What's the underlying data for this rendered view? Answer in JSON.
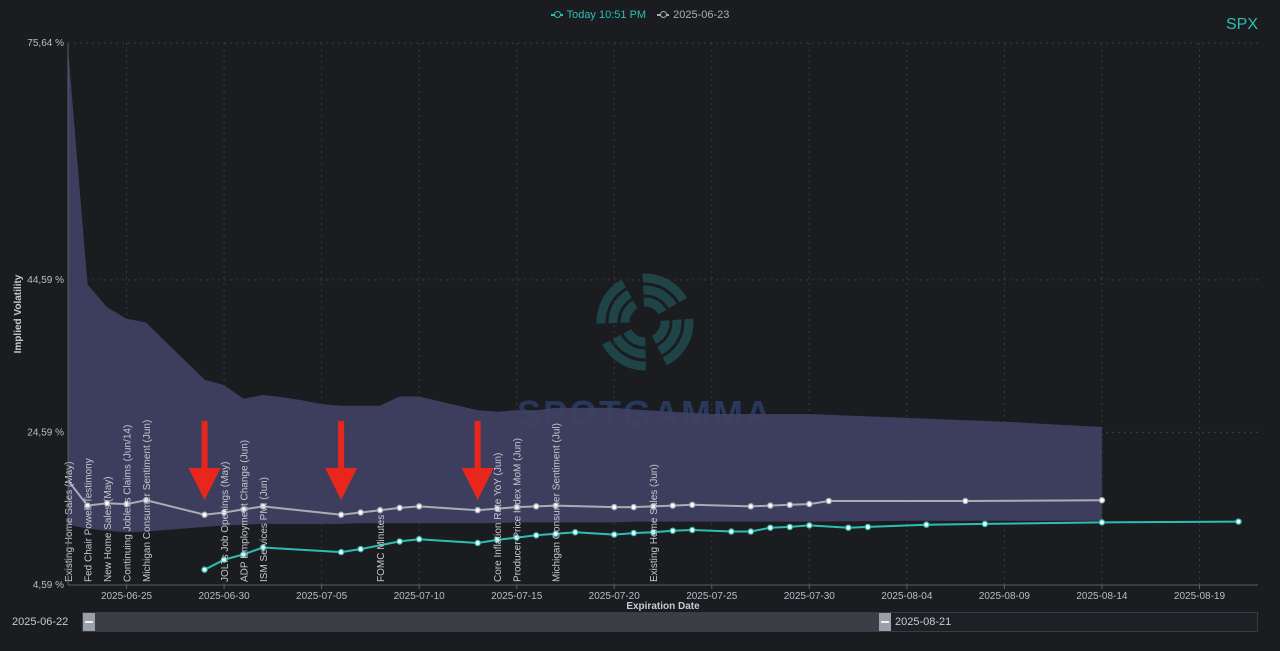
{
  "legend": {
    "today_label": "Today 10:51 PM",
    "prev_label": "2025-06-23"
  },
  "ticker": "SPX",
  "colors": {
    "today": "#2bbfb4",
    "prev": "#a9acb4",
    "band": "#3f4062",
    "arrow": "#e8261b"
  },
  "zoom": {
    "start_label": "2025-06-22",
    "end_label": "2025-08-21"
  },
  "chart_data": {
    "type": "line",
    "xlabel": "Expiration Date",
    "ylabel": "Implied Volatility",
    "x_range": [
      "2025-06-22",
      "2025-08-22"
    ],
    "ylim": [
      4.59,
      75.64
    ],
    "yticks": [
      {
        "v": 4.59,
        "label": "4,59 %"
      },
      {
        "v": 24.59,
        "label": "24,59 %"
      },
      {
        "v": 44.59,
        "label": "44,59 %"
      },
      {
        "v": 75.64,
        "label": "75,64 %"
      }
    ],
    "xticks": [
      "2025-06-25",
      "2025-06-30",
      "2025-07-05",
      "2025-07-10",
      "2025-07-15",
      "2025-07-20",
      "2025-07-25",
      "2025-07-30",
      "2025-08-04",
      "2025-08-09",
      "2025-08-14",
      "2025-08-19"
    ],
    "watermark": "SPOTGAMMA",
    "range_band": {
      "x": [
        "2025-06-22",
        "2025-06-23",
        "2025-06-24",
        "2025-06-25",
        "2025-06-26",
        "2025-06-27",
        "2025-06-28",
        "2025-06-29",
        "2025-06-30",
        "2025-07-01",
        "2025-07-02",
        "2025-07-03",
        "2025-07-04",
        "2025-07-05",
        "2025-07-06",
        "2025-07-07",
        "2025-07-08",
        "2025-07-09",
        "2025-07-10",
        "2025-07-11",
        "2025-07-12",
        "2025-07-13",
        "2025-07-14",
        "2025-07-15",
        "2025-07-16",
        "2025-07-17",
        "2025-07-18",
        "2025-07-20",
        "2025-07-21",
        "2025-07-25",
        "2025-07-30",
        "2025-08-04",
        "2025-08-09",
        "2025-08-14"
      ],
      "upper": [
        75.0,
        44.0,
        41.0,
        39.5,
        39.0,
        36.5,
        34.0,
        31.5,
        30.8,
        29.0,
        29.5,
        29.2,
        28.8,
        28.3,
        28.1,
        28.1,
        28.1,
        29.3,
        29.3,
        28.7,
        28.1,
        27.5,
        27.3,
        27.5,
        27.5,
        27.8,
        27.8,
        27.8,
        27.6,
        27.0,
        27.0,
        26.5,
        26.0,
        25.3
      ],
      "lower": [
        12.5,
        12.0,
        11.7,
        11.5,
        11.6,
        11.8,
        12.0,
        12.2,
        12.4,
        12.5,
        12.6,
        12.6,
        12.6,
        12.6,
        12.6,
        12.7,
        12.7,
        12.7,
        12.7,
        12.7,
        12.7,
        12.7,
        12.7,
        12.8,
        12.8,
        12.8,
        12.8,
        12.8,
        12.9,
        12.9,
        12.9,
        13.0,
        13.0,
        13.0
      ]
    },
    "series": [
      {
        "name": "Today 10:51 PM",
        "x": [
          "2025-06-29",
          "2025-06-30",
          "2025-07-01",
          "2025-07-02",
          "2025-07-06",
          "2025-07-07",
          "2025-07-09",
          "2025-07-10",
          "2025-07-13",
          "2025-07-14",
          "2025-07-15",
          "2025-07-16",
          "2025-07-17",
          "2025-07-18",
          "2025-07-20",
          "2025-07-21",
          "2025-07-22",
          "2025-07-23",
          "2025-07-24",
          "2025-07-26",
          "2025-07-27",
          "2025-07-28",
          "2025-07-29",
          "2025-07-30",
          "2025-08-01",
          "2025-08-02",
          "2025-08-05",
          "2025-08-08",
          "2025-08-14",
          "2025-08-21"
        ],
        "y": [
          6.6,
          7.9,
          8.6,
          9.5,
          8.9,
          9.3,
          10.3,
          10.6,
          10.1,
          10.5,
          10.8,
          11.1,
          11.3,
          11.5,
          11.2,
          11.4,
          11.5,
          11.7,
          11.8,
          11.6,
          11.6,
          12.1,
          12.2,
          12.4,
          12.1,
          12.2,
          12.5,
          12.6,
          12.8,
          12.9
        ]
      },
      {
        "name": "2025-06-23",
        "x": [
          "2025-06-22",
          "2025-06-23",
          "2025-06-24",
          "2025-06-25",
          "2025-06-26",
          "2025-06-29",
          "2025-06-30",
          "2025-07-01",
          "2025-07-02",
          "2025-07-06",
          "2025-07-07",
          "2025-07-08",
          "2025-07-09",
          "2025-07-10",
          "2025-07-13",
          "2025-07-14",
          "2025-07-15",
          "2025-07-16",
          "2025-07-17",
          "2025-07-20",
          "2025-07-21",
          "2025-07-22",
          "2025-07-23",
          "2025-07-24",
          "2025-07-27",
          "2025-07-28",
          "2025-07-29",
          "2025-07-30",
          "2025-07-31",
          "2025-08-07",
          "2025-08-14"
        ],
        "y": [
          18.3,
          15.0,
          15.3,
          15.2,
          15.7,
          13.8,
          14.1,
          14.5,
          14.9,
          13.8,
          14.1,
          14.4,
          14.7,
          14.9,
          14.4,
          14.6,
          14.8,
          14.9,
          15.0,
          14.8,
          14.8,
          14.9,
          15.0,
          15.1,
          14.9,
          15.0,
          15.1,
          15.2,
          15.6,
          15.6,
          15.7
        ]
      }
    ],
    "events": [
      {
        "x": "2025-06-22",
        "label": "Existing Home Sales (May)"
      },
      {
        "x": "2025-06-23",
        "label": "Fed Chair Powell Testimony"
      },
      {
        "x": "2025-06-24",
        "label": "New Home Sales (May)"
      },
      {
        "x": "2025-06-25",
        "label": "Continuing Jobless Claims (Jun/14)"
      },
      {
        "x": "2025-06-26",
        "label": "Michigan Consumer Sentiment (Jun)"
      },
      {
        "x": "2025-06-30",
        "label": "JOLTs Job Openings (May)"
      },
      {
        "x": "2025-07-01",
        "label": "ADP Employment Change (Jun)"
      },
      {
        "x": "2025-07-02",
        "label": "ISM Services PMI (Jun)"
      },
      {
        "x": "2025-07-08",
        "label": "FOMC Minutes"
      },
      {
        "x": "2025-07-14",
        "label": "Core Inflation Rate YoY (Jun)"
      },
      {
        "x": "2025-07-15",
        "label": "Producer Price Index MoM (Jun)"
      },
      {
        "x": "2025-07-17",
        "label": "Michigan Consumer Sentiment (Jul)"
      },
      {
        "x": "2025-07-22",
        "label": "Existing Home Sales (Jun)"
      }
    ],
    "arrows": [
      "2025-06-29",
      "2025-07-06",
      "2025-07-13"
    ]
  }
}
